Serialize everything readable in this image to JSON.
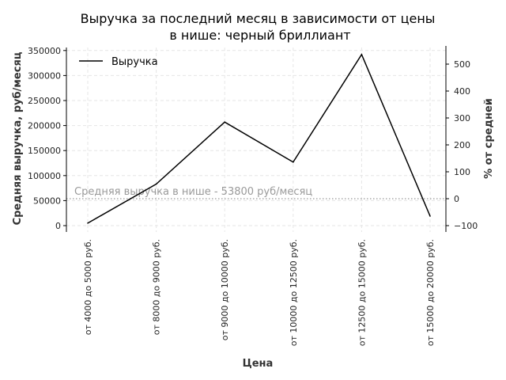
{
  "chart_data": {
    "type": "line",
    "title_line1": "Выручка за последний месяц в зависимости от цены",
    "title_line2": "в нише: черный бриллиант",
    "xlabel": "Цена",
    "ylabel": "Средняя выручка, руб/месяц",
    "y2label": "% от средней",
    "categories": [
      "от 4000 до 5000 руб.",
      "от 8000 до 9000 руб.",
      "от 9000 до 10000 руб.",
      "от 10000 до 12500 руб.",
      "от 12500 до 15000 руб.",
      "от 15000 до 20000 руб."
    ],
    "series": [
      {
        "name": "Выручка",
        "values": [
          5000,
          83000,
          207000,
          127000,
          342000,
          19000
        ],
        "color": "#000000"
      }
    ],
    "ylim": [
      -6000,
      360000
    ],
    "yticks": [
      0,
      50000,
      100000,
      150000,
      200000,
      250000,
      300000,
      350000
    ],
    "y2ticks": [
      -100,
      0,
      100,
      200,
      300,
      400,
      500
    ],
    "reference_line": {
      "value": 53800,
      "label": "Средняя выручка в нише - 53800 руб/месяц",
      "color": "#aaaaaa"
    },
    "legend_position": "top-left",
    "grid": true
  }
}
